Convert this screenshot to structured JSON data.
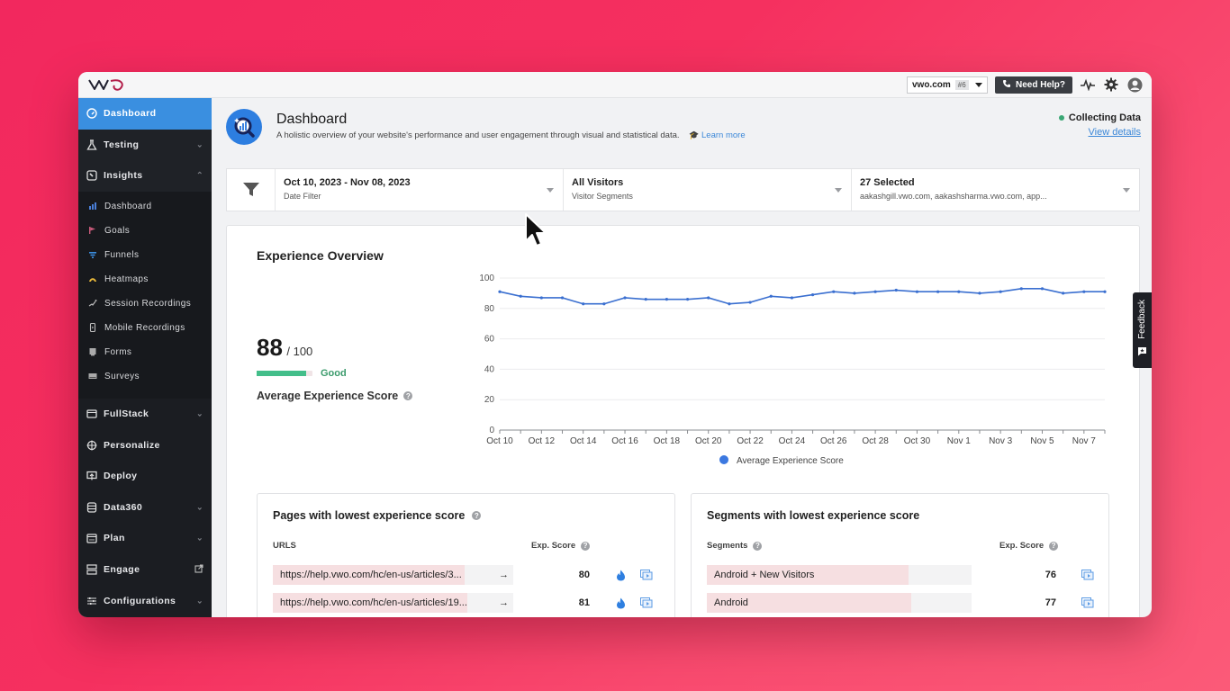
{
  "topbar": {
    "logo": "VWO",
    "account": {
      "name": "vwo.com",
      "badge": "#6"
    },
    "help_label": "Need Help?",
    "icons": [
      "activity-icon",
      "gear-icon",
      "user-avatar-icon"
    ]
  },
  "sidebar": {
    "items": [
      {
        "label": "Dashboard",
        "icon": "dashboard-gauge-icon",
        "active": true
      },
      {
        "label": "Testing",
        "icon": "flask-icon",
        "chevron": "down"
      },
      {
        "label": "Insights",
        "icon": "insights-icon",
        "chevron": "up"
      },
      {
        "label": "FullStack",
        "icon": "fullstack-icon",
        "chevron": "down"
      },
      {
        "label": "Personalize",
        "icon": "crosshair-icon"
      },
      {
        "label": "Deploy",
        "icon": "deploy-icon"
      },
      {
        "label": "Data360",
        "icon": "database-icon",
        "chevron": "down"
      },
      {
        "label": "Plan",
        "icon": "calendar-icon",
        "chevron": "down"
      },
      {
        "label": "Engage",
        "icon": "engage-icon",
        "external": true
      },
      {
        "label": "Configurations",
        "icon": "sliders-icon",
        "chevron": "down"
      }
    ],
    "insights_sub": [
      {
        "label": "Dashboard",
        "icon": "bar-chart-icon",
        "color": "#4a7fd8"
      },
      {
        "label": "Goals",
        "icon": "flag-icon",
        "color": "#c95a7a"
      },
      {
        "label": "Funnels",
        "icon": "funnel-icon",
        "color": "#3b8ee0"
      },
      {
        "label": "Heatmaps",
        "icon": "heatmap-icon",
        "color": "#e8b83a"
      },
      {
        "label": "Session Recordings",
        "icon": "session-recording-icon",
        "color": "#bbbbbb"
      },
      {
        "label": "Mobile Recordings",
        "icon": "mobile-icon",
        "color": "#bbbbbb"
      },
      {
        "label": "Forms",
        "icon": "form-icon",
        "color": "#bbbbbb"
      },
      {
        "label": "Surveys",
        "icon": "survey-icon",
        "color": "#bbbbbb"
      }
    ]
  },
  "header": {
    "title": "Dashboard",
    "description": "A holistic overview of your website's performance and user engagement through visual and statistical data.",
    "learn_more": "Learn more",
    "status": "Collecting Data",
    "status_color": "#3aa774",
    "view_details": "View details"
  },
  "filters": {
    "date": {
      "value": "Oct 10, 2023 - Nov 08, 2023",
      "label": "Date Filter"
    },
    "segment": {
      "value": "All Visitors",
      "label": "Visitor Segments"
    },
    "domains": {
      "value": "27 Selected",
      "label": "aakashgill.vwo.com, aakashsharma.vwo.com, app..."
    }
  },
  "overview": {
    "title": "Experience Overview",
    "score": "88",
    "score_max": "/ 100",
    "score_status": "Good",
    "score_label": "Average Experience Score"
  },
  "chart_data": {
    "type": "line",
    "title": "",
    "xlabel": "",
    "ylabel": "",
    "ylim": [
      0,
      100
    ],
    "yticks": [
      0,
      20,
      40,
      60,
      80,
      100
    ],
    "xtick_labels": [
      "Oct 10",
      "Oct 12",
      "Oct 14",
      "Oct 16",
      "Oct 18",
      "Oct 20",
      "Oct 22",
      "Oct 24",
      "Oct 26",
      "Oct 28",
      "Oct 30",
      "Nov 1",
      "Nov 3",
      "Nov 5",
      "Nov 7"
    ],
    "x": [
      "Oct 10",
      "Oct 11",
      "Oct 12",
      "Oct 13",
      "Oct 14",
      "Oct 15",
      "Oct 16",
      "Oct 17",
      "Oct 18",
      "Oct 19",
      "Oct 20",
      "Oct 21",
      "Oct 22",
      "Oct 23",
      "Oct 24",
      "Oct 25",
      "Oct 26",
      "Oct 27",
      "Oct 28",
      "Oct 29",
      "Oct 30",
      "Oct 31",
      "Nov 1",
      "Nov 2",
      "Nov 3",
      "Nov 4",
      "Nov 5",
      "Nov 6",
      "Nov 7",
      "Nov 8"
    ],
    "series": [
      {
        "name": "Average Experience Score",
        "color": "#3a6fd0",
        "values": [
          91,
          88,
          87,
          87,
          83,
          83,
          87,
          86,
          86,
          86,
          87,
          83,
          84,
          88,
          87,
          89,
          91,
          90,
          91,
          92,
          91,
          91,
          91,
          90,
          91,
          93,
          93,
          90,
          91,
          91
        ]
      }
    ],
    "grid": true,
    "legend_position": "bottom"
  },
  "pages_table": {
    "title": "Pages with lowest experience score",
    "col_url": "URLS",
    "col_score": "Exp. Score",
    "rows": [
      {
        "url": "https://help.vwo.com/hc/en-us/articles/3...",
        "score": "80",
        "bar_pct": 80
      },
      {
        "url": "https://help.vwo.com/hc/en-us/articles/19...",
        "score": "81",
        "bar_pct": 81
      }
    ]
  },
  "segments_table": {
    "title": "Segments with lowest experience score",
    "col_segment": "Segments",
    "col_score": "Exp. Score",
    "rows": [
      {
        "segment": "Android + New Visitors",
        "score": "76",
        "bar_pct": 76
      },
      {
        "segment": "Android",
        "score": "77",
        "bar_pct": 77
      }
    ]
  },
  "feedback_tab": "Feedback"
}
